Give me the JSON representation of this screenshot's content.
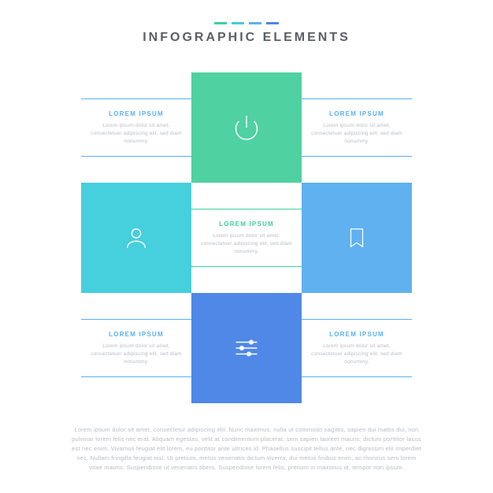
{
  "header": {
    "title": "INFOGRAPHIC ELEMENTS",
    "accent_colors": [
      "#3ecf9a",
      "#43cddc",
      "#5ab0f2",
      "#4a86e8"
    ]
  },
  "grid": {
    "tile_size": 140,
    "tiles": {
      "top": {
        "icon": "power",
        "bg_color": "#4fd1a1",
        "icon_stroke": "#ffffff"
      },
      "left": {
        "icon": "user",
        "bg_color": "#46cfdc",
        "icon_stroke": "#ffffff"
      },
      "right": {
        "icon": "bookmark",
        "bg_color": "#5fb1f0",
        "icon_stroke": "#ffffff"
      },
      "bottom": {
        "icon": "sliders",
        "bg_color": "#4f88e6",
        "icon_stroke": "#ffffff"
      },
      "center": {
        "heading": "LOREM IPSUM",
        "heading_color": "#3ecf9a",
        "border_color": "#3ecf9a",
        "body": "Lorem ipsum dolor sit amet, consectetuer adipiscing elit, sed diam nonummy."
      },
      "top_left": {
        "heading": "LOREM IPSUM",
        "heading_color": "#5ab0f2",
        "border_color": "#5ab0f2",
        "body": "Lorem ipsum dolor sit amet, consectetuer adipiscing elit, sed diam nonummy."
      },
      "top_right": {
        "heading": "LOREM IPSUM",
        "heading_color": "#5ab0f2",
        "border_color": "#5ab0f2",
        "body": "Lorem ipsum dolor sit amet, consectetuer adipiscing elit, sed diam nonummy."
      },
      "bottom_left": {
        "heading": "LOREM IPSUM",
        "heading_color": "#5ab0f2",
        "border_color": "#5ab0f2",
        "body": "Lorem ipsum dolor sit amet, consectetuer adipiscing elit, sed diam nonummy."
      },
      "bottom_right": {
        "heading": "LOREM IPSUM",
        "heading_color": "#5ab0f2",
        "border_color": "#5ab0f2",
        "body": "Lorem ipsum dolor sit amet, consectetuer adipiscing elit, sed diam nonummy."
      }
    }
  },
  "footer": {
    "text": "Lorem ipsum dolor sit amet, consectetur adipiscing elit. Nunc maximus, nulla ut commodo sagittis, sapien dui mattis dui, non pulvinar lorem felis nec erat. Aliquam egestas, velit at condimentum placerat, sem sapien laoreet mauris, dictum porttitor lacus est nec enim. Vivamus feugiat elit lorem, eu porttitor ante ultrices id. Phasellus suscipit tellus ante, nec dignissim elit imperdiet nec. Nullam fringilla feugiat nisl. Ut pretium, metus venenatis dictum viverra, dui metus finibus enim, ac rhoncus sem lorem vitae mauris. Suspendisse ut venenatis libero. Suspendisse lorem felis, pretium in maximus id, tempor non ipsum."
  }
}
